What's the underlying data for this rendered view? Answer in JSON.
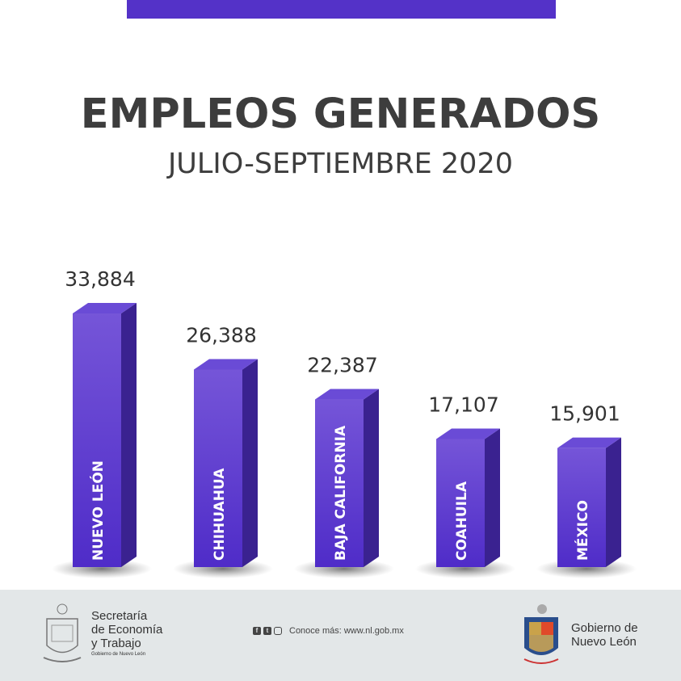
{
  "header": {
    "title": "EMPLEOS GENERADOS",
    "subtitle": "JULIO-SEPTIEMBRE 2020"
  },
  "chart_data": {
    "type": "bar",
    "title": "EMPLEOS GENERADOS",
    "subtitle": "JULIO-SEPTIEMBRE 2020",
    "categories": [
      "NUEVO LEÓN",
      "CHIHUAHUA",
      "BAJA CALIFORNIA",
      "COAHUILA",
      "MÉXICO"
    ],
    "values": [
      33884,
      26388,
      22387,
      17107,
      15901
    ],
    "value_labels": [
      "33,884",
      "26,388",
      "22,387",
      "17,107",
      "15,901"
    ],
    "ylim": [
      0,
      33884
    ],
    "grid": false,
    "colors": {
      "bar": "#5a38d0",
      "bar_top": "#6a4bd6",
      "bar_side": "#3a2290",
      "topbar": "#5432c8"
    }
  },
  "footer": {
    "secretaria": [
      "Secretaría",
      "de Economía",
      "y Trabajo"
    ],
    "secretaria_sub": "Gobierno de Nuevo León",
    "social_icons": [
      "facebook-icon",
      "twitter-icon",
      "instagram-icon"
    ],
    "link_text": "Conoce más: www.nl.gob.mx",
    "gobierno": [
      "Gobierno de",
      "Nuevo León"
    ]
  }
}
